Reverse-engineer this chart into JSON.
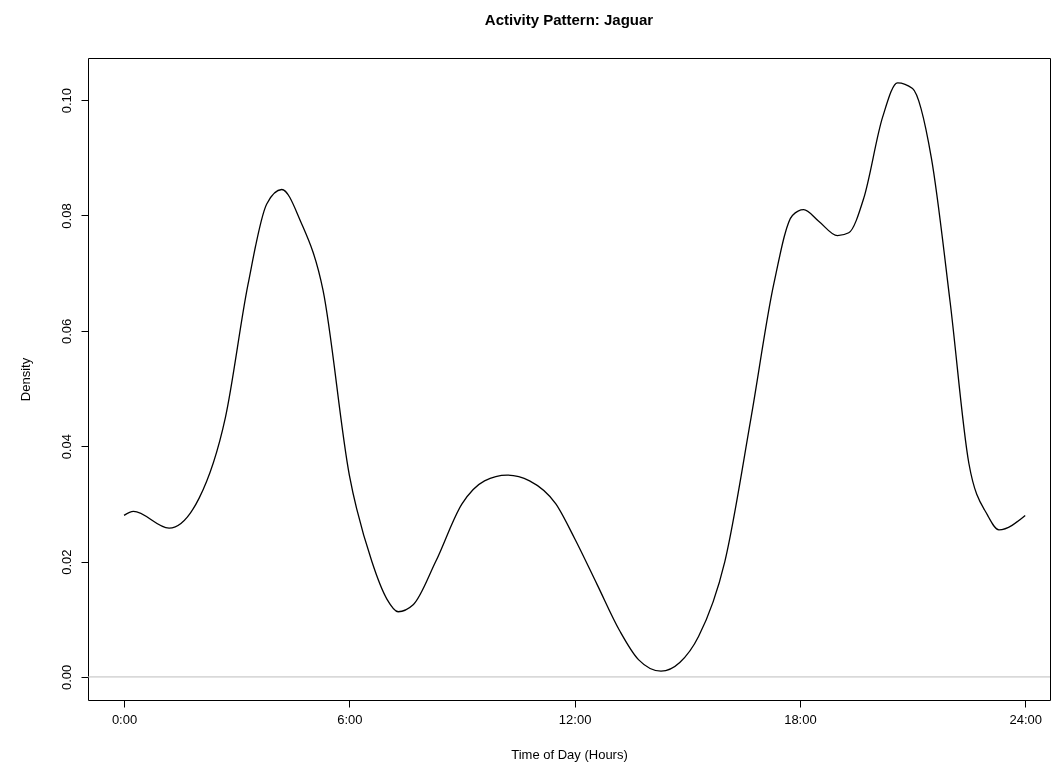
{
  "chart_data": {
    "type": "line",
    "title": "Activity Pattern: Jaguar",
    "xlabel": "Time of Day (Hours)",
    "ylabel": "Density",
    "x": [
      0,
      0.25,
      1.2,
      2,
      2.7,
      3.3,
      3.8,
      4.2,
      4.7,
      5.3,
      6,
      6.6,
      7,
      7.3,
      7.7,
      8.3,
      9,
      9.6,
      10.2,
      10.8,
      11.5,
      12,
      12.6,
      13.2,
      13.7,
      14.3,
      14.8,
      15.3,
      16,
      16.7,
      17.3,
      17.8,
      18.1,
      18.5,
      19,
      19.3,
      19.7,
      20.2,
      20.6,
      21,
      21.5,
      22,
      22.5,
      23,
      23.3,
      24
    ],
    "series": [
      {
        "color": "#000000",
        "values": [
          0.028,
          0.0287,
          0.0258,
          0.031,
          0.045,
          0.068,
          0.082,
          0.0845,
          0.079,
          0.067,
          0.035,
          0.02,
          0.0135,
          0.0113,
          0.0125,
          0.02,
          0.03,
          0.034,
          0.035,
          0.034,
          0.03,
          0.024,
          0.016,
          0.008,
          0.003,
          0.001,
          0.0025,
          0.007,
          0.02,
          0.045,
          0.068,
          0.08,
          0.081,
          0.079,
          0.0765,
          0.077,
          0.083,
          0.097,
          0.103,
          0.102,
          0.09,
          0.065,
          0.037,
          0.028,
          0.0255,
          0.028
        ]
      }
    ],
    "xlim": [
      -0.96,
      24.66
    ],
    "ylim": [
      -0.004,
      0.1073
    ],
    "xticks": [
      {
        "value": 0,
        "label": "0:00"
      },
      {
        "value": 6,
        "label": "6:00"
      },
      {
        "value": 12,
        "label": "12:00"
      },
      {
        "value": 18,
        "label": "18:00"
      },
      {
        "value": 24,
        "label": "24:00"
      }
    ],
    "yticks": [
      {
        "value": 0,
        "label": "0.00"
      },
      {
        "value": 0.02,
        "label": "0.02"
      },
      {
        "value": 0.04,
        "label": "0.04"
      },
      {
        "value": 0.06,
        "label": "0.06"
      },
      {
        "value": 0.08,
        "label": "0.08"
      },
      {
        "value": 0.1,
        "label": "0.10"
      }
    ],
    "ref_lines": [
      {
        "axis": "y",
        "value": 0,
        "color": "#bebebe"
      }
    ]
  }
}
